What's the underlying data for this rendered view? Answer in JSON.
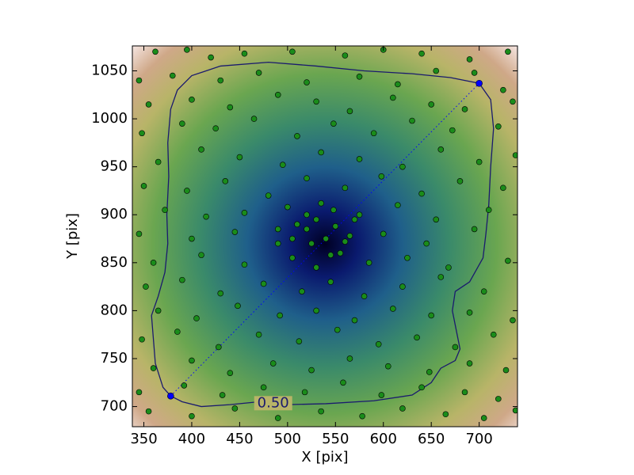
{
  "chart_data": {
    "type": "scatter",
    "xlabel": "X [pix]",
    "ylabel": "Y [pix]",
    "xlim": [
      338,
      740
    ],
    "ylim": [
      679,
      1076
    ],
    "xticks": [
      350,
      400,
      450,
      500,
      550,
      600,
      650,
      700
    ],
    "yticks": [
      700,
      750,
      800,
      850,
      900,
      950,
      1000,
      1050
    ],
    "points": {
      "color": "#1a8c1a",
      "x": [
        362,
        395,
        420,
        455,
        505,
        560,
        600,
        640,
        690,
        730,
        345,
        380,
        430,
        470,
        520,
        575,
        615,
        655,
        695,
        725,
        355,
        400,
        440,
        490,
        530,
        565,
        610,
        650,
        685,
        735,
        348,
        390,
        425,
        465,
        510,
        548,
        590,
        630,
        672,
        720,
        365,
        410,
        450,
        495,
        535,
        575,
        620,
        660,
        700,
        738,
        350,
        395,
        435,
        480,
        520,
        560,
        598,
        640,
        680,
        725,
        372,
        415,
        455,
        500,
        530,
        548,
        575,
        615,
        655,
        710,
        345,
        400,
        445,
        490,
        520,
        540,
        560,
        600,
        645,
        695,
        360,
        410,
        455,
        505,
        530,
        555,
        585,
        625,
        668,
        730,
        352,
        390,
        430,
        475,
        515,
        545,
        580,
        620,
        660,
        705,
        365,
        405,
        448,
        492,
        530,
        570,
        610,
        650,
        690,
        735,
        348,
        385,
        428,
        470,
        512,
        552,
        595,
        635,
        675,
        715,
        360,
        400,
        440,
        485,
        525,
        565,
        605,
        648,
        690,
        728,
        345,
        392,
        432,
        475,
        518,
        558,
        598,
        640,
        685,
        720,
        355,
        400,
        445,
        490,
        535,
        578,
        620,
        665,
        705,
        738,
        510,
        525,
        550,
        565,
        505,
        535,
        545,
        520,
        570,
        490
      ],
      "y": [
        1070,
        1072,
        1064,
        1068,
        1070,
        1066,
        1072,
        1068,
        1062,
        1070,
        1040,
        1045,
        1040,
        1048,
        1038,
        1044,
        1036,
        1050,
        1048,
        1030,
        1015,
        1020,
        1012,
        1025,
        1018,
        1008,
        1022,
        1015,
        1010,
        1018,
        985,
        995,
        990,
        1000,
        982,
        995,
        985,
        998,
        988,
        992,
        955,
        968,
        960,
        952,
        965,
        958,
        950,
        968,
        955,
        962,
        930,
        925,
        935,
        920,
        938,
        928,
        940,
        922,
        935,
        928,
        905,
        898,
        902,
        908,
        895,
        905,
        900,
        910,
        895,
        905,
        880,
        875,
        882,
        870,
        885,
        875,
        872,
        880,
        870,
        885,
        850,
        858,
        848,
        855,
        845,
        860,
        850,
        855,
        845,
        852,
        825,
        832,
        818,
        828,
        820,
        830,
        815,
        825,
        835,
        820,
        800,
        792,
        805,
        795,
        800,
        790,
        802,
        795,
        798,
        790,
        770,
        778,
        762,
        775,
        768,
        780,
        765,
        772,
        762,
        775,
        740,
        748,
        735,
        745,
        738,
        750,
        742,
        736,
        745,
        738,
        715,
        722,
        712,
        720,
        715,
        725,
        712,
        720,
        715,
        708,
        695,
        690,
        698,
        688,
        695,
        690,
        698,
        692,
        688,
        696,
        890,
        870,
        888,
        878,
        875,
        912,
        858,
        900,
        895,
        885
      ]
    },
    "endpoints": {
      "color": "#0000ff",
      "x": [
        378,
        700
      ],
      "y": [
        711,
        1037
      ]
    },
    "contour": {
      "color": "#1a1a6e",
      "level": {
        "value": 0.5,
        "label": "0.50"
      },
      "x": [
        378,
        370,
        362,
        360,
        358,
        365,
        372,
        375,
        374,
        376,
        375,
        378,
        385,
        400,
        430,
        480,
        530,
        580,
        630,
        670,
        700,
        712,
        715,
        712,
        710,
        707,
        704,
        690,
        675,
        672,
        676,
        680,
        675,
        660,
        650,
        630,
        590,
        540,
        500,
        470,
        440,
        410,
        390,
        378
      ],
      "y": [
        711,
        720,
        745,
        770,
        795,
        815,
        840,
        870,
        900,
        940,
        975,
        1010,
        1030,
        1045,
        1055,
        1059,
        1055,
        1050,
        1047,
        1043,
        1037,
        1020,
        990,
        950,
        910,
        880,
        855,
        830,
        820,
        800,
        780,
        760,
        748,
        740,
        725,
        712,
        706,
        703,
        702,
        705,
        702,
        700,
        705,
        711
      ]
    }
  }
}
